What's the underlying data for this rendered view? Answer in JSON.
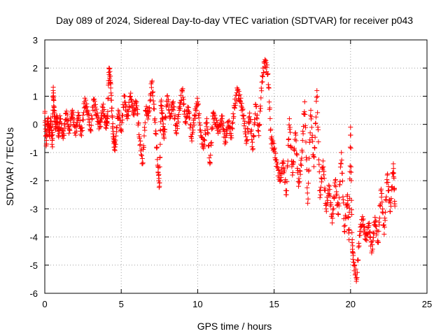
{
  "chart_data": {
    "type": "scatter",
    "title": "Day 089 of 2024, Sidereal Day-to-day VTEC variation (SDTVAR) for receiver p043",
    "xlabel": "GPS time / hours",
    "ylabel": "SDTVAR / TECUs",
    "xlim": [
      0,
      25
    ],
    "ylim": [
      -6,
      3
    ],
    "xticks": [
      0,
      5,
      10,
      15,
      20,
      25
    ],
    "yticks": [
      -6,
      -5,
      -4,
      -3,
      -2,
      -1,
      0,
      1,
      2,
      3
    ],
    "grid": true,
    "marker": "+",
    "color": "#ff0000",
    "series": [
      {
        "name": "SDTVAR",
        "x": [
          0.0,
          0.1,
          0.2,
          0.3,
          0.4,
          0.5,
          0.55,
          0.6,
          0.7,
          0.8,
          0.9,
          1.0,
          1.2,
          1.4,
          1.6,
          1.8,
          2.0,
          2.2,
          2.4,
          2.6,
          2.8,
          3.0,
          3.2,
          3.4,
          3.6,
          3.8,
          4.0,
          4.1,
          4.2,
          4.3,
          4.4,
          4.5,
          4.6,
          4.8,
          5.0,
          5.2,
          5.4,
          5.6,
          5.8,
          6.0,
          6.2,
          6.4,
          6.6,
          6.8,
          7.0,
          7.2,
          7.4,
          7.5,
          7.6,
          7.7,
          7.8,
          8.0,
          8.2,
          8.4,
          8.6,
          8.8,
          9.0,
          9.2,
          9.4,
          9.6,
          9.8,
          10.0,
          10.2,
          10.4,
          10.6,
          10.8,
          11.0,
          11.2,
          11.4,
          11.6,
          11.8,
          12.0,
          12.2,
          12.4,
          12.6,
          12.8,
          13.0,
          13.2,
          13.4,
          13.6,
          13.8,
          14.0,
          14.2,
          14.4,
          14.6,
          14.8,
          15.0,
          15.2,
          15.4,
          15.6,
          15.8,
          16.0,
          16.2,
          16.4,
          16.6,
          16.8,
          17.0,
          17.2,
          17.4,
          17.6,
          17.8,
          18.0,
          18.2,
          18.4,
          18.6,
          18.8,
          19.0,
          19.2,
          19.4,
          19.6,
          19.8,
          19.9,
          20.0,
          20.1,
          20.2,
          20.4,
          20.6,
          20.8,
          21.0,
          21.2,
          21.4,
          21.6,
          21.8,
          22.0,
          22.2,
          22.4,
          22.6,
          22.8,
          22.9
        ],
        "y": [
          0.4,
          -0.7,
          0.2,
          -0.3,
          0.1,
          -0.8,
          1.2,
          0.6,
          -0.1,
          0.3,
          -0.4,
          0.2,
          -0.5,
          0.4,
          -0.2,
          0.5,
          -0.3,
          0.3,
          -0.4,
          0.8,
          0.5,
          -0.2,
          0.9,
          0.3,
          -0.1,
          0.6,
          0.0,
          0.2,
          2.0,
          1.5,
          0.3,
          -0.6,
          -0.8,
          0.5,
          -0.2,
          1.0,
          0.2,
          1.0,
          0.4,
          0.8,
          -0.5,
          -1.4,
          0.5,
          0.3,
          1.5,
          0.2,
          -1.5,
          -2.2,
          0.8,
          0.2,
          -0.5,
          1.0,
          0.3,
          0.8,
          -0.3,
          0.5,
          1.2,
          0.1,
          0.6,
          -0.5,
          0.3,
          0.8,
          -0.4,
          -0.8,
          0.2,
          -1.4,
          0.4,
          0.0,
          -0.2,
          0.2,
          -0.6,
          0.1,
          -0.4,
          0.6,
          1.2,
          0.8,
          0.3,
          -0.6,
          0.4,
          -0.9,
          0.7,
          -0.4,
          1.5,
          2.3,
          1.8,
          -0.5,
          -0.9,
          -1.5,
          -2.0,
          -1.3,
          -2.5,
          0.2,
          -1.8,
          -0.3,
          -2.2,
          -1.2,
          0.8,
          -2.8,
          0.5,
          -1.5,
          1.2,
          -2.6,
          -1.3,
          -3.0,
          -2.2,
          -3.5,
          -2.0,
          -3.2,
          -1.0,
          -3.8,
          -2.5,
          -4.1,
          -0.1,
          -4.2,
          -4.9,
          -5.5,
          -3.8,
          -3.4,
          -4.1,
          -3.6,
          -4.5,
          -3.3,
          -4.2,
          -2.3,
          -3.9,
          -1.8,
          -3.1,
          -1.4,
          -2.9
        ]
      }
    ]
  }
}
